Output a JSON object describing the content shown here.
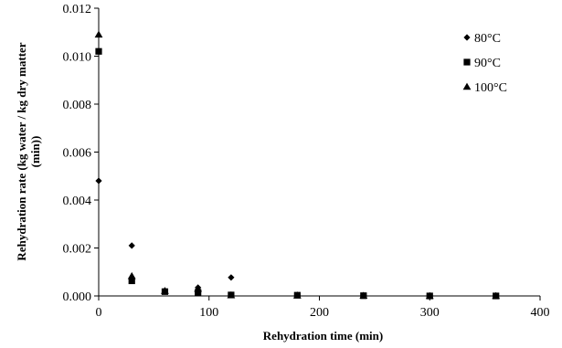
{
  "chart_data": {
    "type": "scatter",
    "xlabel": "Rehydration time (min)",
    "ylabel_lines": [
      "Rehydration rate (kg water / kg dry matter",
      "(min))"
    ],
    "xlim": [
      0,
      400
    ],
    "ylim": [
      0,
      0.012
    ],
    "x_ticks": [
      "0",
      "100",
      "200",
      "300",
      "400"
    ],
    "y_ticks": [
      "0.000",
      "0.002",
      "0.004",
      "0.006",
      "0.008",
      "0.010",
      "0.012"
    ],
    "grid": false,
    "legend_position": "top-right",
    "series": [
      {
        "name": "80°C",
        "marker": "diamond",
        "points": [
          [
            0,
            0.0048
          ],
          [
            30,
            0.0021
          ],
          [
            60,
            0.00022
          ],
          [
            90,
            0.00035
          ],
          [
            120,
            0.00077
          ],
          [
            180,
            4e-05
          ],
          [
            240,
            2e-05
          ],
          [
            300,
            1e-05
          ],
          [
            360,
            0.0
          ]
        ]
      },
      {
        "name": "90°C",
        "marker": "square",
        "points": [
          [
            0,
            0.0102
          ],
          [
            30,
            0.00063
          ],
          [
            60,
            0.00018
          ],
          [
            90,
            0.00015
          ],
          [
            120,
            4e-05
          ],
          [
            180,
            3e-05
          ],
          [
            240,
            1e-05
          ],
          [
            300,
            0.0
          ],
          [
            360,
            0.0
          ]
        ]
      },
      {
        "name": "100°C",
        "marker": "triangle",
        "points": [
          [
            0,
            0.0109
          ],
          [
            30,
            0.00083
          ],
          [
            60,
            0.00021
          ],
          [
            90,
            0.0003
          ],
          [
            120,
            3e-05
          ],
          [
            180,
            2e-05
          ],
          [
            240,
            1e-05
          ],
          [
            300,
            0.0
          ],
          [
            360,
            0.0
          ]
        ]
      }
    ]
  }
}
